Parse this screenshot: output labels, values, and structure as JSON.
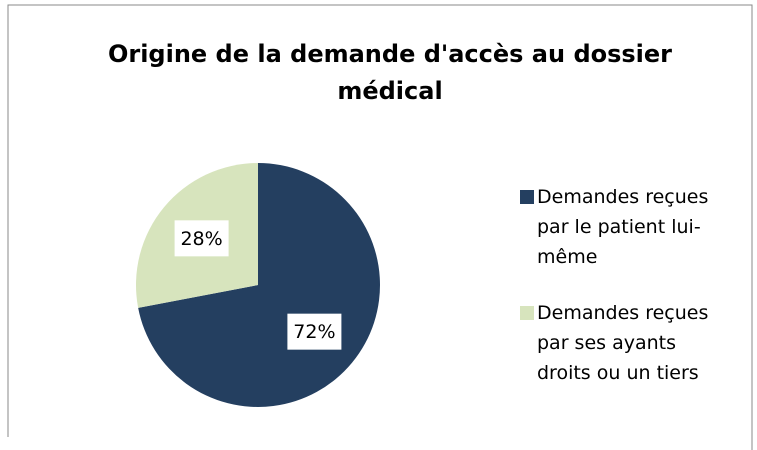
{
  "chart_data": {
    "type": "pie",
    "title": "Origine de la demande d'accès au dossier médical",
    "categories": [
      "Demandes reçues par le patient lui-même",
      "Demandes reçues par ses ayants droits ou un tiers"
    ],
    "values": [
      72,
      28
    ],
    "value_labels": [
      "72%",
      "28%"
    ],
    "colors": [
      "#243f60",
      "#d7e4bd"
    ],
    "legend": "right"
  }
}
